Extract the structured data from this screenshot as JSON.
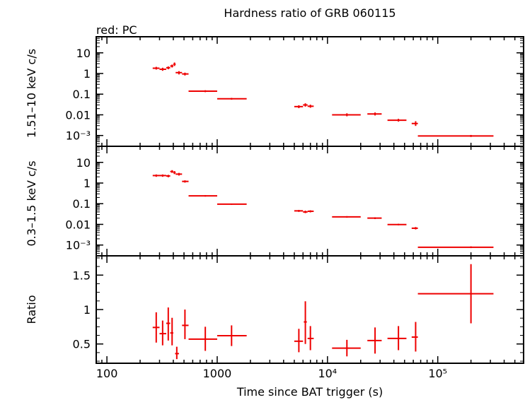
{
  "figure": {
    "title": "Hardness ratio of GRB 060115",
    "subtitle": "red: PC",
    "xlabel": "Time since BAT trigger (s)",
    "series_color": "#ee0000"
  },
  "chart_data": [
    {
      "type": "scatter",
      "panel": "top",
      "ylabel": "1.51–10 keV c/s",
      "x_scale": "log",
      "y_scale": "log",
      "xlim": [
        80,
        600000
      ],
      "ylim": [
        0.0003,
        60
      ],
      "yticks": [
        "10⁻³",
        "0.01",
        "0.1",
        "1",
        "10"
      ],
      "grid": false,
      "series": [
        {
          "points": [
            {
              "x": 280,
              "y": 1.8,
              "xerr": [
                260,
                300
              ],
              "yerr": [
                1.55,
                2.1
              ]
            },
            {
              "x": 320,
              "y": 1.6,
              "xerr": [
                300,
                345
              ],
              "yerr": [
                1.35,
                1.9
              ]
            },
            {
              "x": 360,
              "y": 1.9,
              "xerr": [
                345,
                375
              ],
              "yerr": [
                1.6,
                2.2
              ]
            },
            {
              "x": 390,
              "y": 2.3,
              "xerr": [
                375,
                400
              ],
              "yerr": [
                1.95,
                2.7
              ]
            },
            {
              "x": 410,
              "y": 2.8,
              "xerr": [
                400,
                420
              ],
              "yerr": [
                2.3,
                3.4
              ]
            },
            {
              "x": 450,
              "y": 1.1,
              "xerr": [
                420,
                480
              ],
              "yerr": [
                0.9,
                1.3
              ]
            },
            {
              "x": 510,
              "y": 0.95,
              "xerr": [
                480,
                550
              ],
              "yerr": [
                0.8,
                1.1
              ]
            },
            {
              "x": 780,
              "y": 0.14,
              "xerr": [
                550,
                1000
              ],
              "yerr": [
                0.125,
                0.155
              ]
            },
            {
              "x": 1350,
              "y": 0.06,
              "xerr": [
                1000,
                1850
              ],
              "yerr": [
                0.054,
                0.066
              ]
            },
            {
              "x": 5500,
              "y": 0.025,
              "xerr": [
                5000,
                6000
              ],
              "yerr": [
                0.021,
                0.029
              ]
            },
            {
              "x": 6300,
              "y": 0.03,
              "xerr": [
                6000,
                6600
              ],
              "yerr": [
                0.025,
                0.036
              ]
            },
            {
              "x": 7000,
              "y": 0.026,
              "xerr": [
                6600,
                7500
              ],
              "yerr": [
                0.022,
                0.031
              ]
            },
            {
              "x": 15000,
              "y": 0.01,
              "xerr": [
                11000,
                20000
              ],
              "yerr": [
                0.0085,
                0.0118
              ]
            },
            {
              "x": 27000,
              "y": 0.011,
              "xerr": [
                23000,
                31000
              ],
              "yerr": [
                0.0093,
                0.013
              ]
            },
            {
              "x": 44000,
              "y": 0.0055,
              "xerr": [
                35000,
                52000
              ],
              "yerr": [
                0.0047,
                0.0064
              ]
            },
            {
              "x": 63000,
              "y": 0.0038,
              "xerr": [
                58000,
                66000
              ],
              "yerr": [
                0.0029,
                0.0049
              ]
            },
            {
              "x": 200000,
              "y": 0.00095,
              "xerr": [
                66000,
                320000
              ],
              "yerr": [
                0.00085,
                0.00106
              ]
            }
          ]
        }
      ]
    },
    {
      "type": "scatter",
      "panel": "middle",
      "ylabel": "0.3–1.5 keV c/s",
      "x_scale": "log",
      "y_scale": "log",
      "xlim": [
        80,
        600000
      ],
      "ylim": [
        0.0003,
        60
      ],
      "yticks": [
        "10⁻³",
        "0.01",
        "0.1",
        "1",
        "10"
      ],
      "grid": false,
      "series": [
        {
          "points": [
            {
              "x": 280,
              "y": 2.3,
              "xerr": [
                260,
                300
              ],
              "yerr": [
                2.0,
                2.6
              ]
            },
            {
              "x": 320,
              "y": 2.3,
              "xerr": [
                300,
                345
              ],
              "yerr": [
                2.0,
                2.6
              ]
            },
            {
              "x": 360,
              "y": 2.2,
              "xerr": [
                345,
                375
              ],
              "yerr": [
                1.9,
                2.5
              ]
            },
            {
              "x": 390,
              "y": 3.6,
              "xerr": [
                375,
                400
              ],
              "yerr": [
                3.1,
                4.2
              ]
            },
            {
              "x": 410,
              "y": 3.2,
              "xerr": [
                400,
                420
              ],
              "yerr": [
                2.7,
                3.8
              ]
            },
            {
              "x": 450,
              "y": 2.7,
              "xerr": [
                420,
                480
              ],
              "yerr": [
                2.3,
                3.1
              ]
            },
            {
              "x": 510,
              "y": 1.2,
              "xerr": [
                480,
                550
              ],
              "yerr": [
                1.05,
                1.35
              ]
            },
            {
              "x": 780,
              "y": 0.24,
              "xerr": [
                550,
                1000
              ],
              "yerr": [
                0.22,
                0.26
              ]
            },
            {
              "x": 1350,
              "y": 0.095,
              "xerr": [
                1000,
                1850
              ],
              "yerr": [
                0.088,
                0.102
              ]
            },
            {
              "x": 5500,
              "y": 0.045,
              "xerr": [
                5000,
                6000
              ],
              "yerr": [
                0.04,
                0.05
              ]
            },
            {
              "x": 6300,
              "y": 0.04,
              "xerr": [
                6000,
                6600
              ],
              "yerr": [
                0.035,
                0.046
              ]
            },
            {
              "x": 7000,
              "y": 0.043,
              "xerr": [
                6600,
                7500
              ],
              "yerr": [
                0.038,
                0.048
              ]
            },
            {
              "x": 15000,
              "y": 0.023,
              "xerr": [
                11000,
                20000
              ],
              "yerr": [
                0.021,
                0.025
              ]
            },
            {
              "x": 27000,
              "y": 0.02,
              "xerr": [
                23000,
                31000
              ],
              "yerr": [
                0.018,
                0.022
              ]
            },
            {
              "x": 44000,
              "y": 0.0098,
              "xerr": [
                35000,
                52000
              ],
              "yerr": [
                0.009,
                0.0107
              ]
            },
            {
              "x": 63000,
              "y": 0.0065,
              "xerr": [
                58000,
                66000
              ],
              "yerr": [
                0.0057,
                0.0074
              ]
            },
            {
              "x": 200000,
              "y": 0.00078,
              "xerr": [
                66000,
                320000
              ],
              "yerr": [
                0.00071,
                0.00086
              ]
            }
          ]
        }
      ]
    },
    {
      "type": "scatter",
      "panel": "bottom",
      "ylabel": "Ratio",
      "x_scale": "log",
      "y_scale": "linear",
      "xlim": [
        80,
        600000
      ],
      "ylim": [
        0.22,
        1.78
      ],
      "yticks": [
        "0.5",
        "1",
        "1.5"
      ],
      "xticks": [
        "100",
        "1000",
        "10⁴",
        "10⁵"
      ],
      "grid": false,
      "series": [
        {
          "points": [
            {
              "x": 280,
              "y": 0.74,
              "xerr": [
                260,
                300
              ],
              "yerr": [
                0.52,
                0.96
              ]
            },
            {
              "x": 320,
              "y": 0.65,
              "xerr": [
                300,
                345
              ],
              "yerr": [
                0.48,
                0.84
              ]
            },
            {
              "x": 360,
              "y": 0.8,
              "xerr": [
                345,
                375
              ],
              "yerr": [
                0.55,
                1.03
              ]
            },
            {
              "x": 390,
              "y": 0.66,
              "xerr": [
                375,
                400
              ],
              "yerr": [
                0.48,
                0.88
              ]
            },
            {
              "x": 430,
              "y": 0.36,
              "xerr": [
                415,
                450
              ],
              "yerr": [
                0.28,
                0.46
              ]
            },
            {
              "x": 510,
              "y": 0.77,
              "xerr": [
                480,
                550
              ],
              "yerr": [
                0.57,
                1.0
              ]
            },
            {
              "x": 780,
              "y": 0.57,
              "xerr": [
                550,
                1000
              ],
              "yerr": [
                0.4,
                0.75
              ]
            },
            {
              "x": 1350,
              "y": 0.62,
              "xerr": [
                1000,
                1850
              ],
              "yerr": [
                0.47,
                0.77
              ]
            },
            {
              "x": 5500,
              "y": 0.54,
              "xerr": [
                5000,
                6000
              ],
              "yerr": [
                0.38,
                0.72
              ]
            },
            {
              "x": 6300,
              "y": 0.82,
              "xerr": [
                6100,
                6500
              ],
              "yerr": [
                0.5,
                1.12
              ]
            },
            {
              "x": 7000,
              "y": 0.58,
              "xerr": [
                6600,
                7500
              ],
              "yerr": [
                0.41,
                0.76
              ]
            },
            {
              "x": 15000,
              "y": 0.44,
              "xerr": [
                11000,
                20000
              ],
              "yerr": [
                0.32,
                0.56
              ]
            },
            {
              "x": 27000,
              "y": 0.55,
              "xerr": [
                23000,
                31000
              ],
              "yerr": [
                0.36,
                0.74
              ]
            },
            {
              "x": 44000,
              "y": 0.58,
              "xerr": [
                35000,
                52000
              ],
              "yerr": [
                0.41,
                0.76
              ]
            },
            {
              "x": 63000,
              "y": 0.6,
              "xerr": [
                58000,
                66000
              ],
              "yerr": [
                0.39,
                0.82
              ]
            },
            {
              "x": 200000,
              "y": 1.23,
              "xerr": [
                66000,
                320000
              ],
              "yerr": [
                0.8,
                1.66
              ]
            }
          ]
        }
      ]
    }
  ]
}
